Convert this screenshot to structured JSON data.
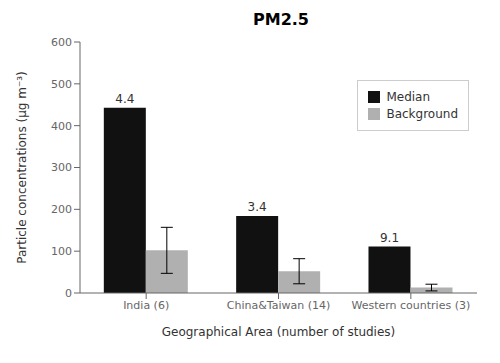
{
  "chart_data": {
    "type": "bar",
    "title": "PM2.5",
    "xlabel": "Geographical Area (number of studies)",
    "ylabel": "Particle concentrations (μg m⁻³)",
    "categories": [
      "India (6)",
      "China&Taiwan (14)",
      "Western countries (3)"
    ],
    "series": [
      {
        "name": "Median",
        "color": "#111111",
        "values": [
          443,
          184,
          111
        ],
        "annotations": [
          "4.4",
          "3.4",
          "9.1"
        ]
      },
      {
        "name": "Background",
        "color": "#b0b0b0",
        "values": [
          102,
          52,
          13
        ],
        "errors": [
          55,
          30,
          8
        ]
      }
    ],
    "ylim": [
      0,
      600
    ],
    "yticks": [
      0,
      100,
      200,
      300,
      400,
      500,
      600
    ],
    "grid": false,
    "legend": "upper right"
  }
}
